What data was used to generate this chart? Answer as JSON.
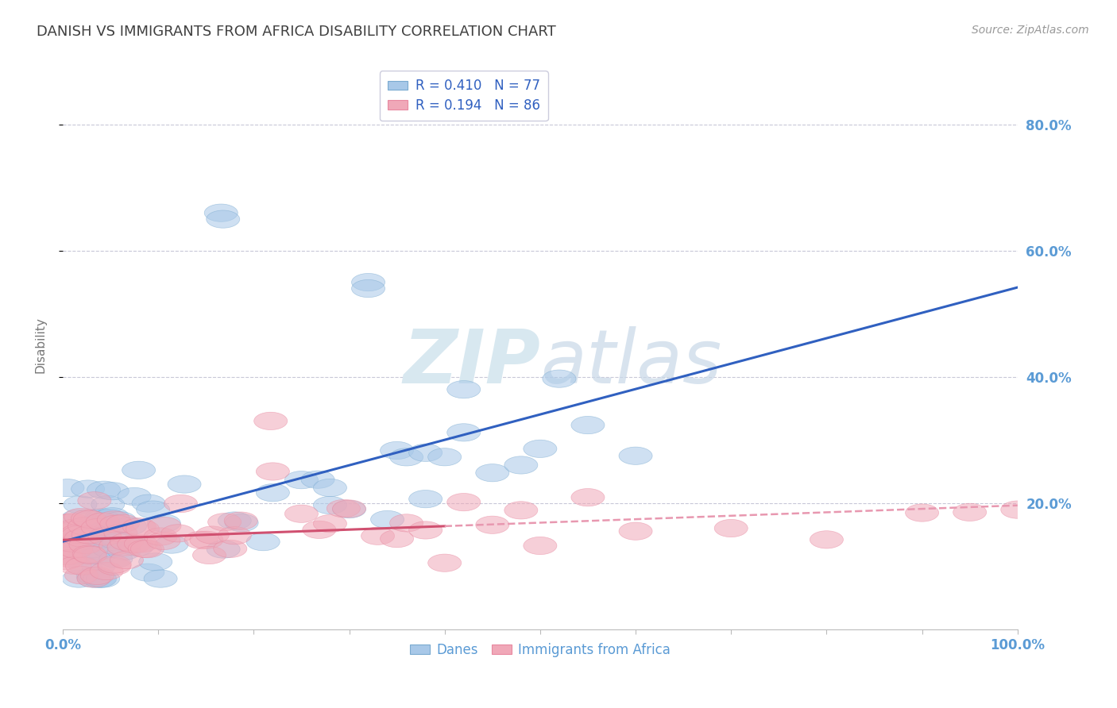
{
  "title": "DANISH VS IMMIGRANTS FROM AFRICA DISABILITY CORRELATION CHART",
  "source": "Source: ZipAtlas.com",
  "ylabel": "Disability",
  "legend_1_label": "Danes",
  "legend_2_label": "Immigrants from Africa",
  "r1": 0.41,
  "n1": 77,
  "r2": 0.194,
  "n2": 86,
  "blue_color": "#A8C8E8",
  "pink_color": "#F0A8B8",
  "blue_edge_color": "#7AAAD0",
  "pink_edge_color": "#E888A0",
  "blue_line_color": "#3060C0",
  "pink_line_color": "#D05070",
  "pink_dash_color": "#E898B0",
  "background_color": "#FFFFFF",
  "grid_color": "#C8C8D8",
  "title_color": "#404040",
  "axis_label_color": "#5B9BD5",
  "watermark_color": "#D8E8F0",
  "xlim": [
    0,
    100
  ],
  "ylim": [
    0,
    90
  ],
  "yticks": [
    20,
    40,
    60,
    80
  ],
  "yticklabels": [
    "20.0%",
    "40.0%",
    "60.0%",
    "80.0%"
  ],
  "title_fontsize": 13,
  "source_fontsize": 10,
  "tick_fontsize": 12
}
